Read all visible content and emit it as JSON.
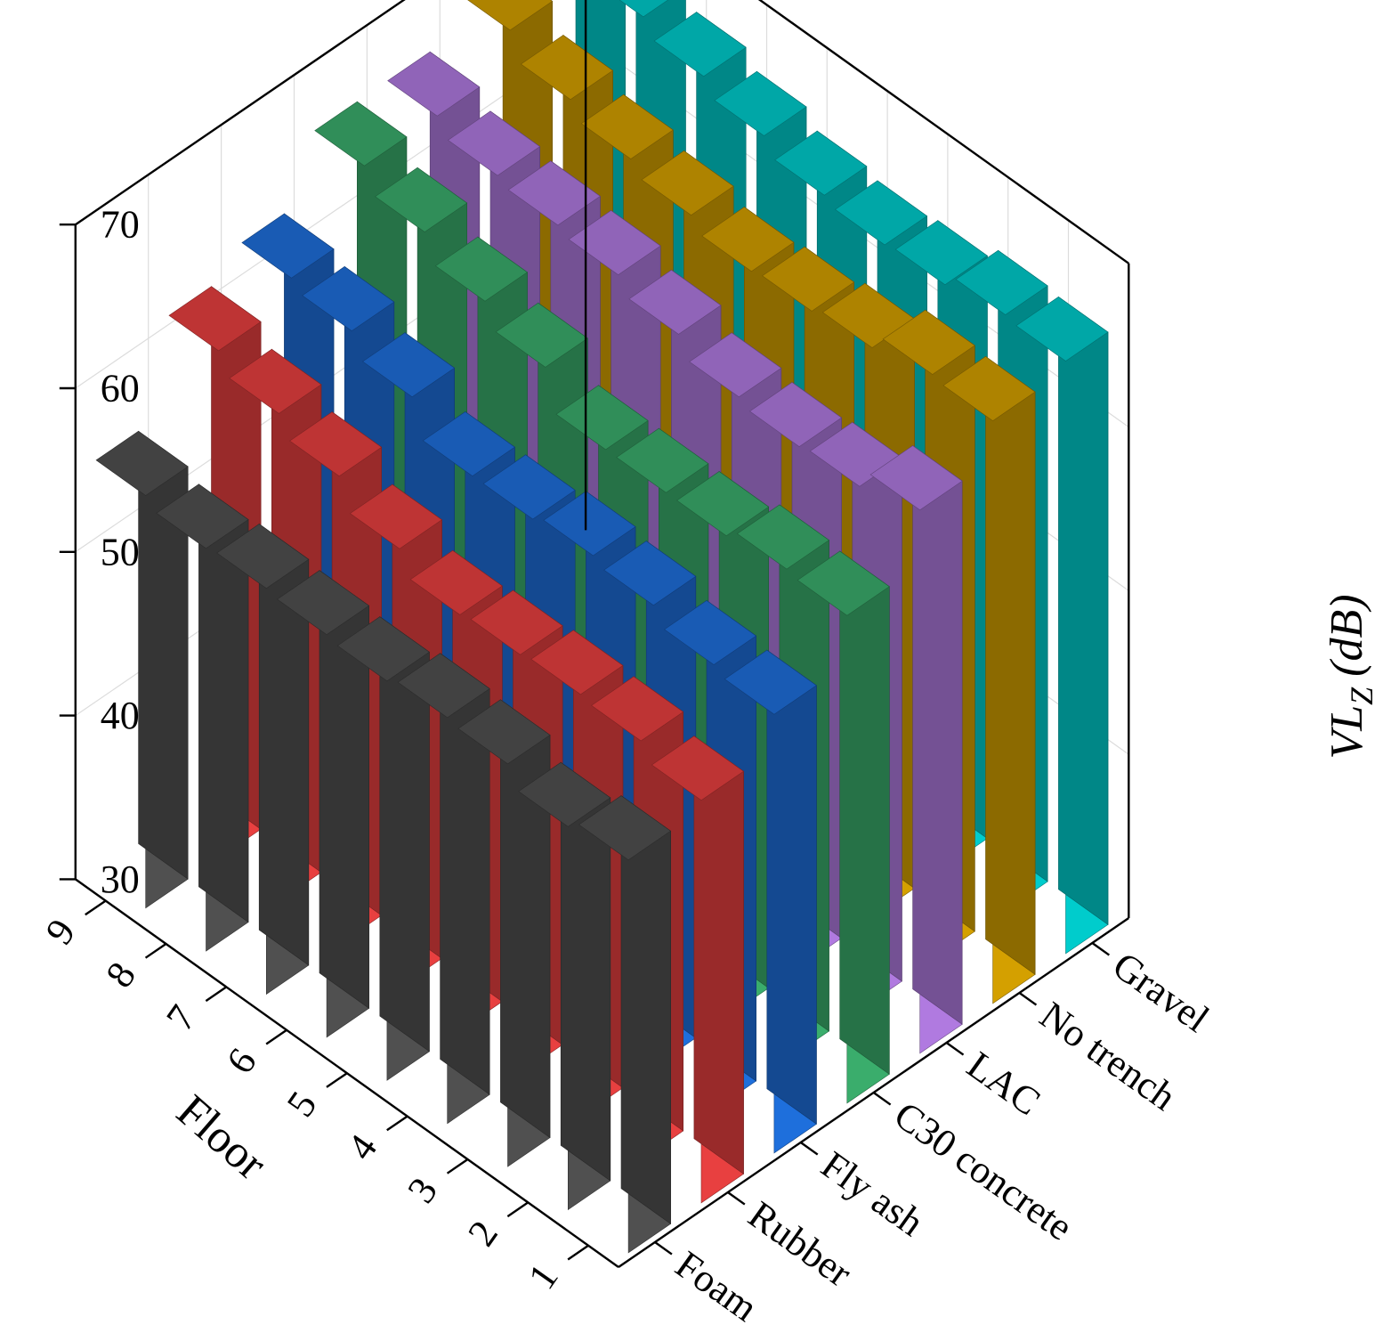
{
  "chart_data": {
    "type": "bar3d",
    "xlabel": "Floor",
    "ylabel": "",
    "zlabel_main": "VL",
    "zlabel_sub": "Z",
    "zlabel_unit": "(dB)",
    "floors": [
      "1",
      "2",
      "3",
      "4",
      "5",
      "6",
      "7",
      "8",
      "9"
    ],
    "zlim": [
      30,
      70
    ],
    "zticks": [
      "30",
      "40",
      "50",
      "60",
      "70"
    ],
    "grid": true,
    "series": [
      {
        "name": "Foam",
        "color": "#505050",
        "values": [
          54.0,
          53.4,
          54.6,
          54.8,
          54.4,
          54.6,
          54.8,
          54.6,
          55.2
        ]
      },
      {
        "name": "Rubber",
        "color": "#e84040",
        "values": [
          54.6,
          55.6,
          55.8,
          55.6,
          55.4,
          56.8,
          58.6,
          59.8,
          61.0
        ]
      },
      {
        "name": "Fly ash",
        "color": "#1e6fdc",
        "values": [
          56.8,
          57.2,
          58.2,
          58.6,
          58.2,
          58.2,
          60.4,
          61.8,
          62.4
        ]
      },
      {
        "name": "C30 concrete",
        "color": "#3aad6c",
        "values": [
          59.8,
          60.0,
          59.4,
          59.4,
          59.4,
          61.8,
          63.2,
          64.8,
          66.2
        ]
      },
      {
        "name": "LAC",
        "color": "#b07ae0",
        "values": [
          63.2,
          62.0,
          61.8,
          62.2,
          63.4,
          64.4,
          64.8,
          65.2,
          66.2
        ]
      },
      {
        "name": "No trench",
        "color": "#d4a000",
        "values": [
          65.6,
          65.8,
          64.8,
          64.4,
          64.2,
          65.0,
          65.8,
          66.8,
          68.4
        ]
      },
      {
        "name": "Gravel",
        "color": "#00cccc",
        "values": [
          66.2,
          66.4,
          65.6,
          65.4,
          65.8,
          66.8,
          67.8,
          68.8,
          69.6
        ]
      }
    ]
  }
}
